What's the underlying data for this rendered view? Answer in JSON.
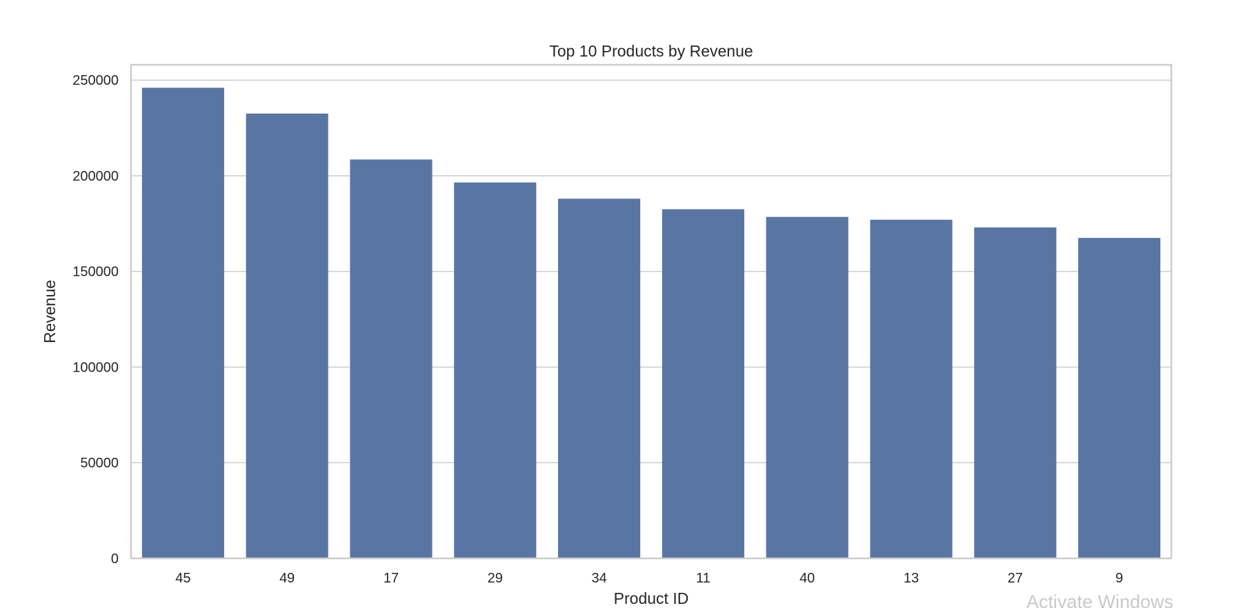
{
  "chart_data": {
    "type": "bar",
    "title": "Top 10 Products by Revenue",
    "xlabel": "Product ID",
    "ylabel": "Revenue",
    "categories": [
      "45",
      "49",
      "17",
      "29",
      "34",
      "11",
      "40",
      "13",
      "27",
      "9"
    ],
    "values": [
      246000,
      232500,
      208500,
      196500,
      188000,
      182500,
      178500,
      177000,
      173000,
      167500
    ],
    "ylim": [
      0,
      258000
    ],
    "yticks": [
      0,
      50000,
      100000,
      150000,
      200000,
      250000
    ],
    "ytick_labels": [
      "0",
      "50000",
      "100000",
      "150000",
      "200000",
      "250000"
    ],
    "grid": true,
    "bar_color": "#5975a4",
    "grid_color": "#cccccc",
    "spine_color": "#cccccc"
  },
  "overlay": {
    "activation_text": "Activate Windows"
  }
}
